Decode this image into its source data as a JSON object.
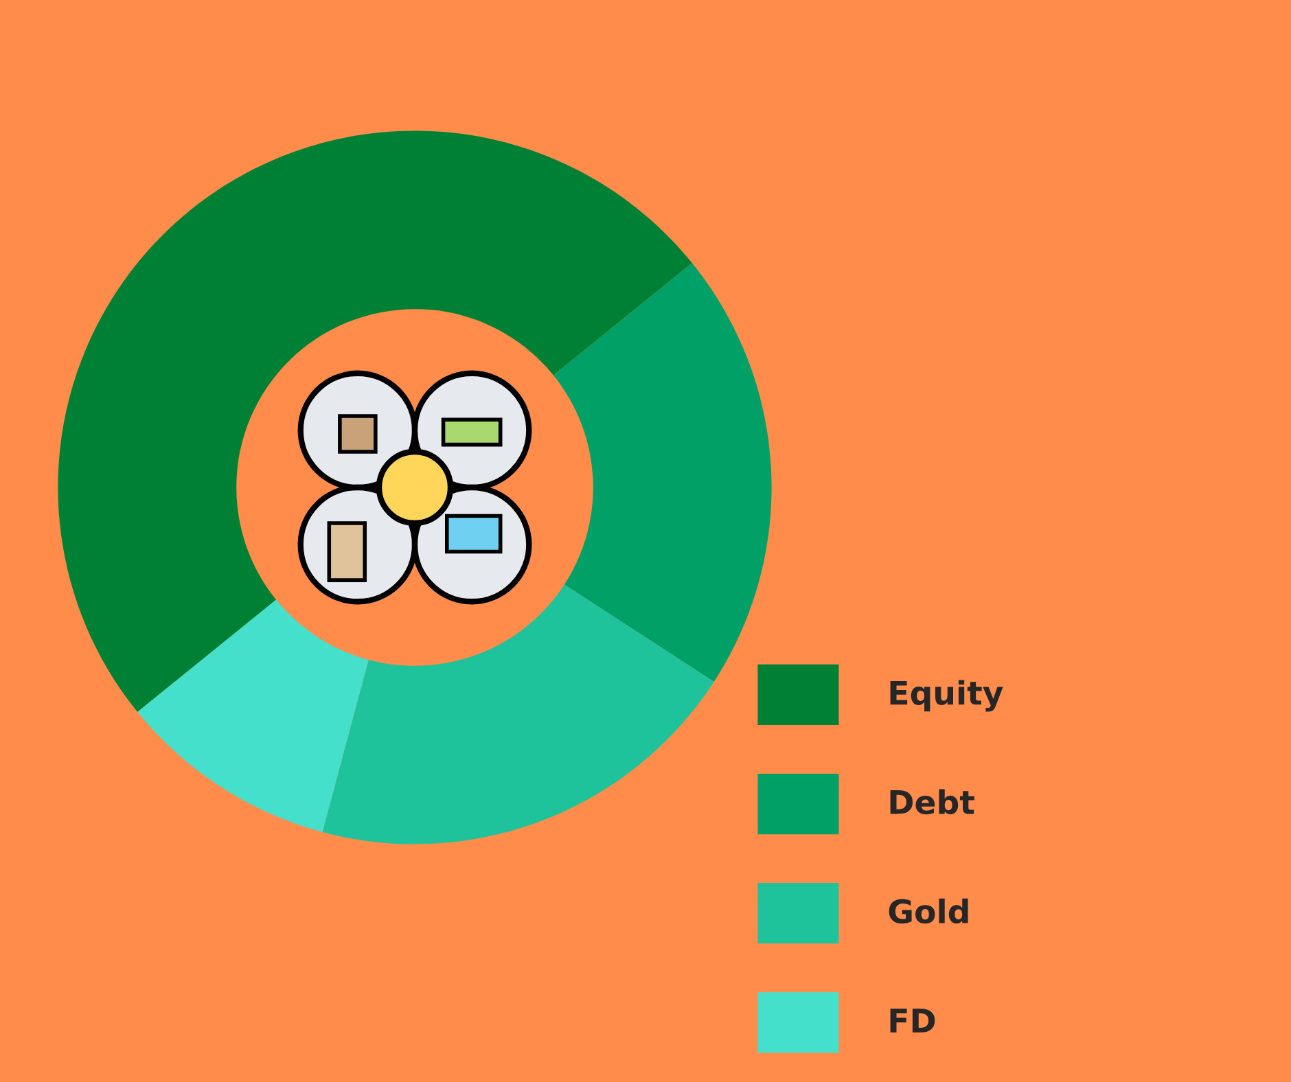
{
  "chart_data": {
    "type": "donut",
    "categories": [
      "Equity",
      "Debt",
      "Gold",
      "FD"
    ],
    "values": [
      50,
      20,
      20,
      10
    ],
    "colors": [
      "#008035",
      "#00a066",
      "#1fc39b",
      "#45e0cc"
    ],
    "legend": "bottom right"
  }
}
